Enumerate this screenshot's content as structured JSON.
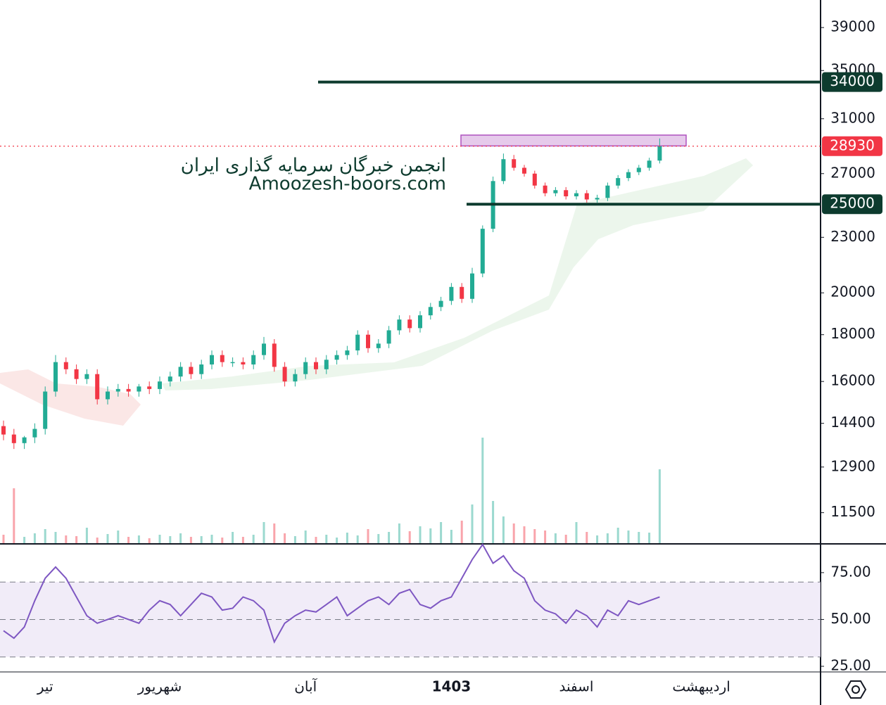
{
  "chart_data": {
    "type": "candlestick",
    "log_scale": true,
    "ylim": [
      10650,
      41800
    ],
    "yticks": [
      39000,
      35000,
      31000,
      27000,
      23000,
      20000,
      18000,
      16000,
      14400,
      12900,
      11500
    ],
    "categories": [
      null,
      null,
      null,
      null,
      "تیر",
      null,
      null,
      null,
      null,
      null,
      null,
      null,
      null,
      null,
      null,
      "شهریور",
      null,
      null,
      null,
      null,
      null,
      null,
      null,
      null,
      null,
      null,
      null,
      null,
      null,
      "آبان",
      null,
      null,
      null,
      null,
      null,
      null,
      null,
      null,
      null,
      null,
      null,
      null,
      null,
      "1403",
      null,
      null,
      null,
      null,
      null,
      null,
      null,
      null,
      null,
      null,
      null,
      "اسفند",
      null,
      null,
      null,
      null,
      null,
      null,
      null,
      null,
      null,
      null,
      null,
      "اردیبهشت",
      null,
      null
    ],
    "up_color": "#22ab94",
    "down_color": "#f23645",
    "open": [
      14300,
      14000,
      13700,
      13900,
      14200,
      15600,
      16800,
      16500,
      16100,
      16300,
      15300,
      15600,
      15700,
      15600,
      15800,
      15700,
      16000,
      16200,
      16600,
      16300,
      16700,
      17100,
      16800,
      16800,
      16700,
      17100,
      17600,
      16600,
      16000,
      16300,
      16800,
      16500,
      16900,
      17100,
      17300,
      18000,
      17400,
      17600,
      18200,
      18700,
      18300,
      18900,
      19300,
      19600,
      20300,
      19700,
      21000,
      23500,
      26500,
      28000,
      27400,
      27000,
      26200,
      25700,
      25900,
      25500,
      25700,
      25300,
      25400,
      26200,
      26700,
      27100,
      27400,
      27900,
      null,
      null,
      null,
      null,
      null,
      null
    ],
    "high": [
      14500,
      14200,
      13950,
      14400,
      15800,
      17100,
      17000,
      16700,
      16500,
      16500,
      15800,
      15900,
      15900,
      15900,
      16000,
      16200,
      16400,
      16800,
      16800,
      16900,
      17300,
      17300,
      17000,
      17000,
      17300,
      17900,
      17800,
      16800,
      16500,
      17000,
      17000,
      17100,
      17300,
      17500,
      18200,
      18200,
      17800,
      18400,
      18900,
      18900,
      19100,
      19500,
      19800,
      20500,
      20500,
      21300,
      23700,
      26800,
      28400,
      28300,
      27600,
      27200,
      26400,
      26100,
      26100,
      25900,
      25900,
      25600,
      26400,
      26900,
      27300,
      27600,
      28100,
      29500,
      null,
      null,
      null,
      null,
      null,
      null
    ],
    "low": [
      13800,
      13500,
      13500,
      13700,
      14000,
      15400,
      16300,
      15900,
      15900,
      15100,
      15100,
      15400,
      15400,
      15400,
      15500,
      15500,
      15800,
      16000,
      16100,
      16100,
      16500,
      16600,
      16600,
      16500,
      16500,
      16900,
      16400,
      15800,
      15800,
      16100,
      16300,
      16300,
      16700,
      16900,
      17100,
      17200,
      17200,
      17400,
      18000,
      18100,
      18100,
      18700,
      19100,
      19400,
      19500,
      19500,
      20800,
      23300,
      26300,
      27200,
      26800,
      26000,
      25500,
      25500,
      25300,
      25300,
      25100,
      25100,
      25200,
      26000,
      26500,
      26900,
      27200,
      27700,
      null,
      null,
      null,
      null,
      null,
      null
    ],
    "close": [
      14000,
      13700,
      13900,
      14200,
      15600,
      16800,
      16500,
      16100,
      16300,
      15300,
      15600,
      15700,
      15600,
      15800,
      15700,
      16000,
      16200,
      16600,
      16300,
      16700,
      17100,
      16800,
      16800,
      16700,
      17100,
      17600,
      16600,
      16000,
      16300,
      16800,
      16500,
      16900,
      17100,
      17300,
      18000,
      17400,
      17600,
      18200,
      18700,
      18300,
      18900,
      19300,
      19600,
      20300,
      19700,
      21000,
      23500,
      26500,
      28000,
      27400,
      27000,
      26200,
      25700,
      25900,
      25500,
      25700,
      25300,
      25400,
      26200,
      26700,
      27100,
      27400,
      27900,
      28930,
      null,
      null,
      null,
      null,
      null,
      null
    ],
    "volume": [
      12,
      78,
      9,
      14,
      20,
      16,
      11,
      10,
      22,
      8,
      13,
      18,
      9,
      11,
      7,
      12,
      10,
      14,
      9,
      10,
      12,
      8,
      16,
      9,
      12,
      30,
      28,
      14,
      10,
      18,
      9,
      12,
      8,
      15,
      11,
      20,
      13,
      16,
      28,
      17,
      24,
      21,
      30,
      19,
      32,
      55,
      150,
      60,
      38,
      28,
      24,
      20,
      18,
      14,
      12,
      30,
      16,
      11,
      14,
      22,
      18,
      16,
      15,
      105,
      null,
      null,
      null,
      null,
      null,
      null
    ],
    "levels": [
      {
        "value": 34000,
        "color": "#0d3b2e"
      },
      {
        "value": 25000,
        "color": "#0d3b2e"
      }
    ],
    "last_price": {
      "value": 28930,
      "color": "#f23645"
    },
    "zone": [
      28950,
      29750
    ],
    "watermark": [
      "انجمن خبرگان سرمایه گذاری ایران",
      "Amoozesh-boors.com"
    ],
    "rsi": {
      "type": "line",
      "color": "#7e57c2",
      "ylim": [
        22,
        89.6
      ],
      "yticks": [
        {
          "value": 75,
          "label": "75.00"
        },
        {
          "value": 50,
          "label": "50.00"
        },
        {
          "value": 25,
          "label": "25.00"
        }
      ],
      "bands": [
        30,
        50,
        70
      ],
      "values": [
        44,
        40,
        46,
        60,
        72,
        78,
        72,
        62,
        52,
        48,
        50,
        52,
        50,
        48,
        55,
        60,
        58,
        52,
        58,
        64,
        62,
        55,
        56,
        62,
        60,
        55,
        38,
        48,
        52,
        55,
        54,
        58,
        62,
        52,
        56,
        60,
        62,
        58,
        64,
        66,
        58,
        56,
        60,
        62,
        72,
        82,
        90,
        80,
        84,
        76,
        72,
        60,
        55,
        53,
        48,
        55,
        52,
        46,
        55,
        52,
        60,
        58,
        60,
        62,
        null,
        null,
        null,
        null,
        null,
        null
      ]
    }
  }
}
